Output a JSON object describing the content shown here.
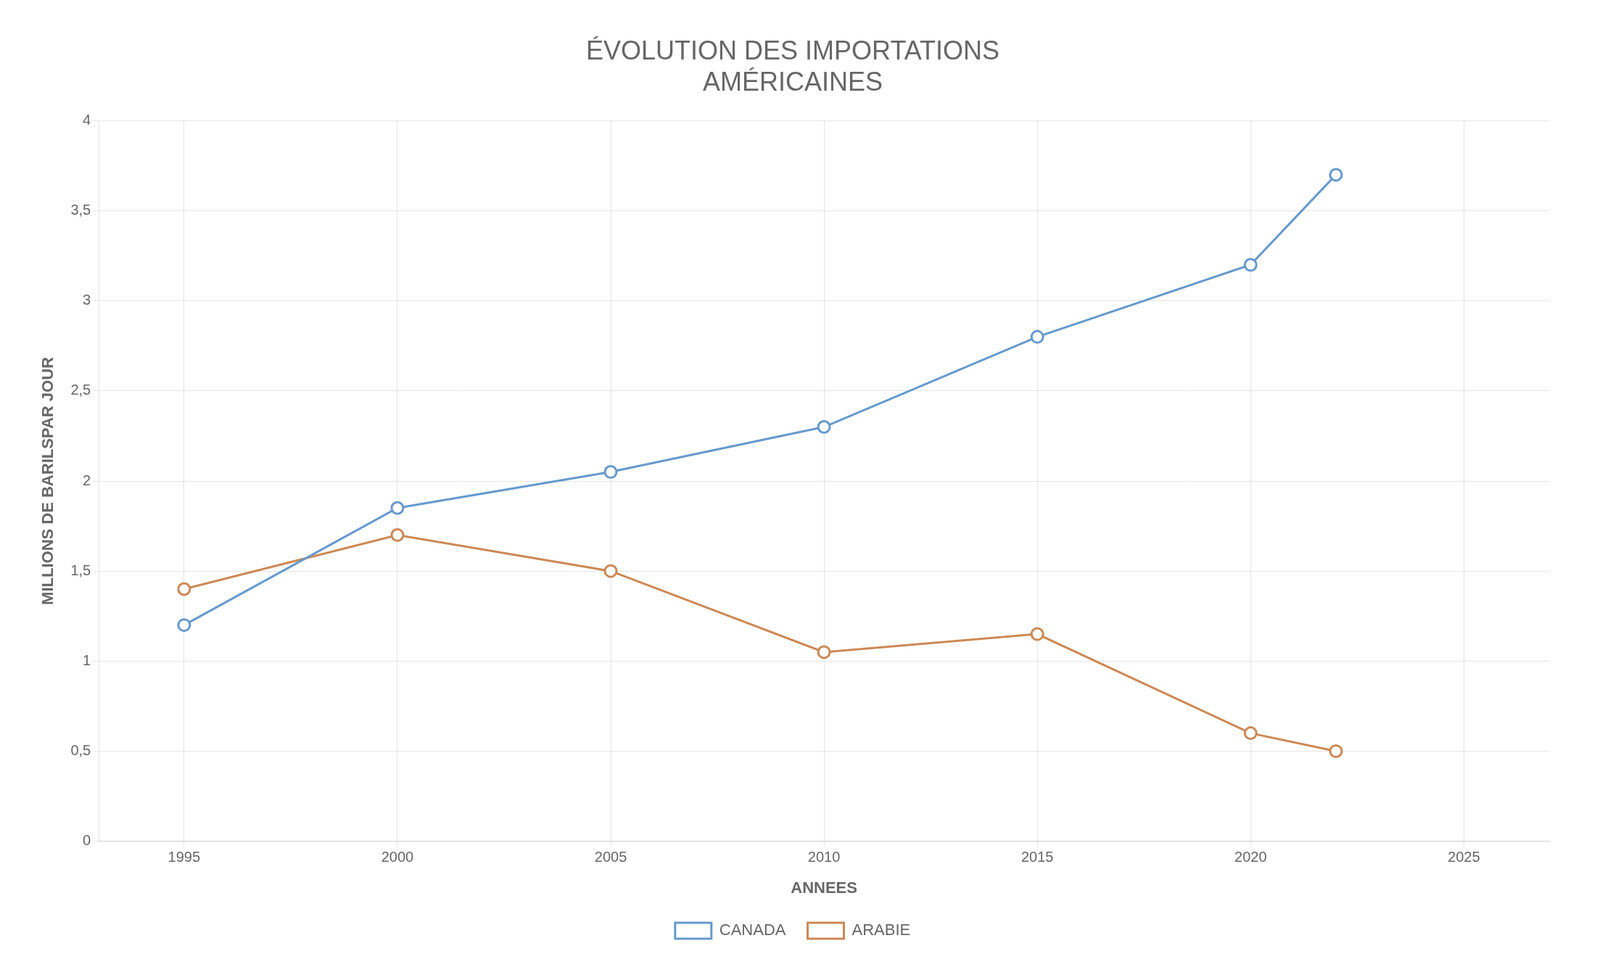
{
  "chart_data": {
    "type": "line",
    "title": "ÉVOLUTION DES IMPORTATIONS\nAMÉRICAINES",
    "xlabel": "ANNEES",
    "ylabel": "MILLIONS DE BARILSPAR JOUR",
    "x": [
      1995,
      2000,
      2005,
      2010,
      2015,
      2020,
      2022
    ],
    "series": [
      {
        "name": "CANADA",
        "color": "#6699cc",
        "values": [
          1.2,
          1.85,
          2.05,
          2.3,
          2.8,
          3.2,
          3.7
        ]
      },
      {
        "name": "ARABIE",
        "color": "#cc8855",
        "values": [
          1.4,
          1.7,
          1.5,
          1.05,
          1.15,
          0.6,
          0.5
        ]
      }
    ],
    "marker": "circle",
    "xlim": [
      1993,
      2027
    ],
    "xticks": [
      1995,
      2000,
      2005,
      2010,
      2015,
      2020,
      2025
    ],
    "ylim": [
      0,
      4
    ],
    "yticks": [
      0,
      {
        "value": 0.5,
        "label": "0,5"
      },
      1,
      {
        "value": 1.5,
        "label": "1,5"
      },
      2,
      {
        "value": 2.5,
        "label": "2,5"
      },
      3,
      {
        "value": 3.5,
        "label": "3,5"
      },
      4
    ],
    "grid": true,
    "legend": "bottom"
  }
}
